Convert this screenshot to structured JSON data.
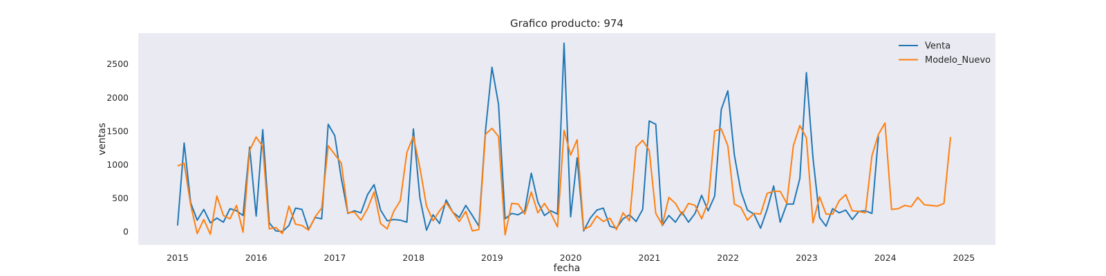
{
  "chart_data": {
    "type": "line",
    "title": "Grafico producto: 974",
    "xlabel": "fecha",
    "ylabel": "ventas",
    "xlim": [
      2014.5,
      2025.4
    ],
    "ylim": [
      -200,
      2960
    ],
    "x_ticks": [
      2015,
      2016,
      2017,
      2018,
      2019,
      2020,
      2021,
      2022,
      2023,
      2024,
      2025
    ],
    "y_ticks": [
      0,
      500,
      1000,
      1500,
      2000,
      2500
    ],
    "grid": false,
    "legend_position": "top-right",
    "background": "#eaeaf2",
    "series": [
      {
        "name": "Venta",
        "color": "#1f77b4",
        "x_start": 2015.0,
        "x_step": 0.0833,
        "values": [
          90,
          1320,
          430,
          170,
          330,
          130,
          200,
          140,
          340,
          310,
          240,
          1260,
          230,
          1520,
          130,
          10,
          0,
          90,
          350,
          330,
          30,
          210,
          190,
          1600,
          1430,
          790,
          270,
          310,
          280,
          550,
          700,
          320,
          160,
          180,
          170,
          140,
          1530,
          500,
          20,
          250,
          120,
          470,
          290,
          210,
          390,
          240,
          80,
          1500,
          2450,
          1900,
          190,
          270,
          250,
          310,
          870,
          440,
          240,
          310,
          260,
          2810,
          220,
          1100,
          10,
          200,
          320,
          350,
          80,
          50,
          190,
          250,
          150,
          330,
          1650,
          1600,
          90,
          240,
          140,
          290,
          140,
          270,
          540,
          310,
          530,
          1820,
          2100,
          1140,
          600,
          320,
          260,
          50,
          330,
          680,
          140,
          410,
          410,
          790,
          2370,
          1100,
          210,
          80,
          340,
          280,
          320,
          180,
          300,
          310,
          270,
          1420
        ]
      },
      {
        "name": "Modelo_Nuevo",
        "color": "#ff7f0e",
        "x_start": 2015.0,
        "x_step": 0.0833,
        "values": [
          980,
          1020,
          400,
          -30,
          180,
          -40,
          530,
          240,
          190,
          390,
          -10,
          1210,
          1410,
          1270,
          40,
          60,
          -30,
          380,
          110,
          90,
          20,
          220,
          350,
          1280,
          1150,
          1020,
          280,
          290,
          170,
          340,
          590,
          120,
          40,
          300,
          460,
          1180,
          1420,
          950,
          380,
          160,
          310,
          430,
          290,
          150,
          300,
          10,
          30,
          1450,
          1540,
          1420,
          -50,
          420,
          410,
          260,
          590,
          280,
          420,
          270,
          70,
          1510,
          1140,
          1370,
          30,
          80,
          230,
          150,
          200,
          30,
          280,
          160,
          1260,
          1360,
          1210,
          270,
          100,
          510,
          420,
          250,
          420,
          390,
          190,
          440,
          1500,
          1530,
          1280,
          410,
          360,
          170,
          270,
          260,
          570,
          600,
          600,
          420,
          1280,
          1580,
          1400,
          130,
          520,
          260,
          260,
          460,
          550,
          310,
          300,
          280,
          1130,
          1450,
          1620,
          330,
          340,
          390,
          370,
          510,
          400,
          390,
          380,
          420,
          1410
        ]
      }
    ]
  }
}
